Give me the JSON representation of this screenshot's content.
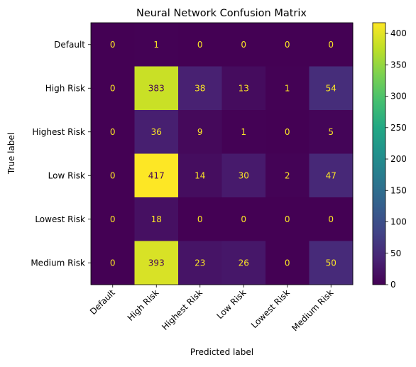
{
  "chart_data": {
    "type": "heatmap",
    "title": "Neural Network Confusion Matrix",
    "xlabel": "Predicted label",
    "ylabel": "True label",
    "row_labels": [
      "Default",
      "High Risk",
      "Highest Risk",
      "Low Risk",
      "Lowest Risk",
      "Medium Risk"
    ],
    "col_labels": [
      "Default",
      "High Risk",
      "Highest Risk",
      "Low Risk",
      "Lowest Risk",
      "Medium Risk"
    ],
    "values": [
      [
        0,
        1,
        0,
        0,
        0,
        0
      ],
      [
        0,
        383,
        38,
        13,
        1,
        54
      ],
      [
        0,
        36,
        9,
        1,
        0,
        5
      ],
      [
        0,
        417,
        14,
        30,
        2,
        47
      ],
      [
        0,
        18,
        0,
        0,
        0,
        0
      ],
      [
        0,
        393,
        23,
        26,
        0,
        50
      ]
    ],
    "colorbar": {
      "colormap": "viridis",
      "range": [
        0,
        417
      ],
      "ticks": [
        0,
        50,
        100,
        150,
        200,
        250,
        300,
        350,
        400
      ]
    },
    "annotation_colors": {
      "on_dark": "#fde725",
      "on_light": "#440154"
    }
  }
}
